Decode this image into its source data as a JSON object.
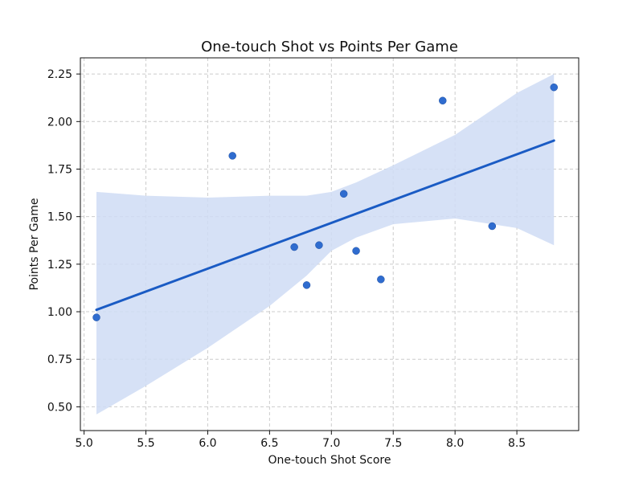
{
  "chart_data": {
    "type": "scatter",
    "title": "One-touch Shot vs Points Per Game",
    "xlabel": "One-touch Shot Score",
    "ylabel": "Points Per Game",
    "xlim": [
      4.97,
      9.0
    ],
    "ylim": [
      0.375,
      2.335
    ],
    "xticks": [
      5.0,
      5.5,
      6.0,
      6.5,
      7.0,
      7.5,
      8.0,
      8.5
    ],
    "yticks": [
      0.5,
      0.75,
      1.0,
      1.25,
      1.5,
      1.75,
      2.0,
      2.25
    ],
    "grid": true,
    "points": [
      {
        "x": 5.1,
        "y": 0.97
      },
      {
        "x": 6.2,
        "y": 1.82
      },
      {
        "x": 6.7,
        "y": 1.34
      },
      {
        "x": 6.8,
        "y": 1.14
      },
      {
        "x": 6.9,
        "y": 1.35
      },
      {
        "x": 7.1,
        "y": 1.62
      },
      {
        "x": 7.2,
        "y": 1.32
      },
      {
        "x": 7.4,
        "y": 1.17
      },
      {
        "x": 7.9,
        "y": 2.11
      },
      {
        "x": 8.3,
        "y": 1.45
      },
      {
        "x": 8.8,
        "y": 2.18
      }
    ],
    "regression_line": {
      "x": [
        5.1,
        8.8
      ],
      "y": [
        1.01,
        1.9
      ]
    },
    "confidence_band": {
      "x": [
        5.1,
        5.5,
        6.0,
        6.5,
        6.8,
        7.0,
        7.2,
        7.5,
        8.0,
        8.5,
        8.8
      ],
      "upper": [
        1.63,
        1.61,
        1.6,
        1.61,
        1.61,
        1.63,
        1.68,
        1.77,
        1.93,
        2.15,
        2.25
      ],
      "lower": [
        0.46,
        0.61,
        0.81,
        1.03,
        1.19,
        1.32,
        1.39,
        1.46,
        1.49,
        1.44,
        1.35
      ]
    },
    "colors": {
      "points": "#2f6ccf",
      "line": "#1a5bc4",
      "band": "#cfdcf4"
    }
  }
}
